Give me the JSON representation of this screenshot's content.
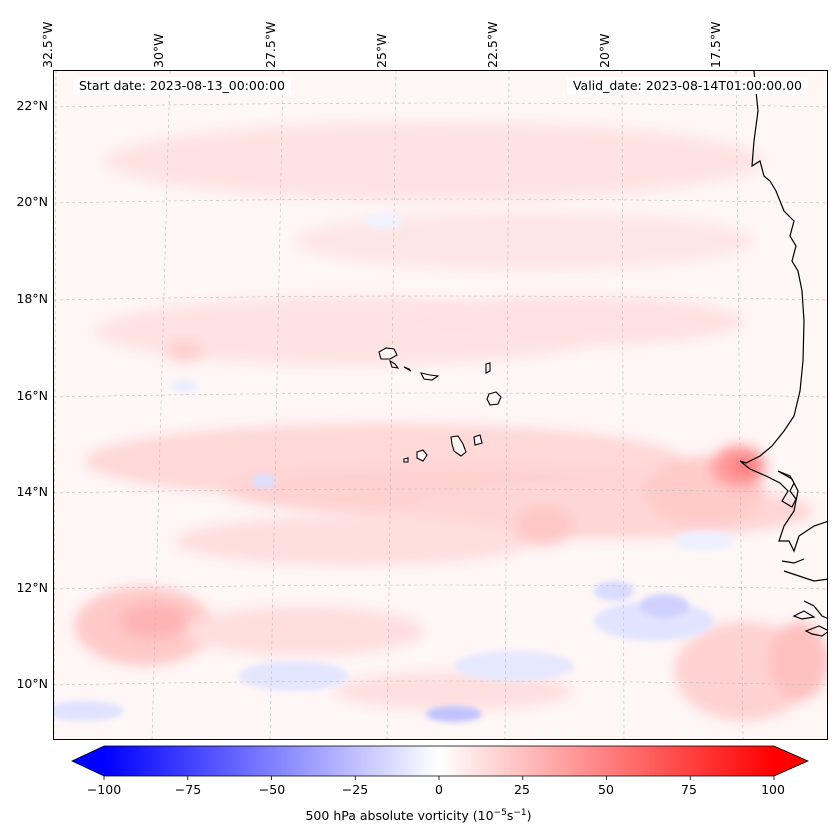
{
  "map": {
    "start_date": "Start date: 2023-08-13_00:00:00",
    "valid_date": "Valid_date: 2023-08-14T01:00:00.00",
    "lon_labels": [
      "32.5°W",
      "30°W",
      "27.5°W",
      "25°W",
      "22.5°W",
      "20°W",
      "17.5°W"
    ],
    "lat_labels": [
      "22°N",
      "20°N",
      "18°N",
      "16°N",
      "14°N",
      "12°N",
      "10°N"
    ],
    "colorbar": {
      "ticks": [
        "−100",
        "−75",
        "−50",
        "−25",
        "0",
        "25",
        "50",
        "75",
        "100"
      ],
      "label": "500 hPa absolute vorticity (10",
      "label_exp1": "−5",
      "label_mid": "s",
      "label_exp2": "−1",
      "label_end": ")",
      "min_color": "#0000ff",
      "max_color": "#ff0000",
      "mid_color": "#ffffff"
    }
  }
}
